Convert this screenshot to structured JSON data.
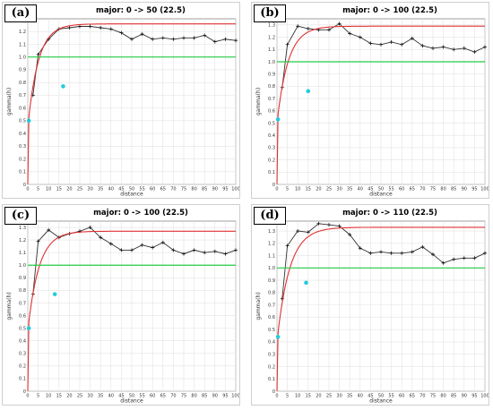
{
  "chart_data": [
    {
      "type": "line",
      "panel_label": "(a)",
      "title": "major: 0 -> 50 (22.5)",
      "xlabel": "distance",
      "ylabel": "gamma(h)",
      "xlim": [
        0,
        100
      ],
      "ylim": [
        0,
        1.3
      ],
      "xticks": [
        0,
        5,
        10,
        15,
        20,
        25,
        30,
        35,
        40,
        45,
        50,
        55,
        60,
        65,
        70,
        75,
        80,
        85,
        90,
        95,
        100
      ],
      "yticks": [
        0,
        0.1,
        0.2,
        0.3,
        0.4,
        0.5,
        0.6,
        0.7,
        0.8,
        0.9,
        1.0,
        1.1,
        1.2
      ],
      "ytick_labels": [
        "0",
        "0.1",
        "0.2",
        "0.3",
        "0.4",
        "0.5",
        "0.6",
        "0.7",
        "0.8",
        "0.9",
        "1.0",
        "1.1",
        "1.2"
      ],
      "grid": true,
      "colors": {
        "experimental": "#333333",
        "model": "#e03030",
        "sill": "#22cc44",
        "pairs": "#22ccdd"
      },
      "series": [
        {
          "kind": "experimental",
          "x": [
            2.5,
            5,
            10,
            15,
            20,
            25,
            30,
            35,
            40,
            45,
            50,
            55,
            60,
            65,
            70,
            75,
            80,
            85,
            90,
            95,
            100
          ],
          "y": [
            0.7,
            1.02,
            1.14,
            1.22,
            1.23,
            1.24,
            1.24,
            1.23,
            1.22,
            1.19,
            1.14,
            1.18,
            1.14,
            1.15,
            1.14,
            1.15,
            1.15,
            1.17,
            1.12,
            1.14,
            1.13
          ]
        },
        {
          "kind": "model",
          "model_range": 15,
          "model_sill": 1.26,
          "model_nugget": 0.45
        },
        {
          "kind": "sill",
          "y": 1.0
        },
        {
          "kind": "pairs",
          "x": [
            0.5,
            17
          ],
          "y": [
            0.5,
            0.77
          ]
        }
      ]
    },
    {
      "type": "line",
      "panel_label": "(b)",
      "title": "major: 0 -> 100 (22.5)",
      "xlabel": "distance",
      "ylabel": "gamma(h)",
      "xlim": [
        0,
        100
      ],
      "ylim": [
        0,
        1.35
      ],
      "xticks": [
        0,
        5,
        10,
        15,
        20,
        25,
        30,
        35,
        40,
        45,
        50,
        55,
        60,
        65,
        70,
        75,
        80,
        85,
        90,
        95,
        100
      ],
      "yticks": [
        0,
        0.1,
        0.2,
        0.3,
        0.4,
        0.5,
        0.6,
        0.7,
        0.8,
        0.9,
        1.0,
        1.1,
        1.2,
        1.3
      ],
      "ytick_labels": [
        "0",
        "0.1",
        "0.2",
        "0.3",
        "0.4",
        "0.5",
        "0.6",
        "0.7",
        "0.8",
        "0.9",
        "1.0",
        "1.1",
        "1.2",
        "1.3"
      ],
      "grid": true,
      "colors": {
        "experimental": "#333333",
        "model": "#e03030",
        "sill": "#22cc44",
        "pairs": "#22ccdd"
      },
      "series": [
        {
          "kind": "experimental",
          "x": [
            2.5,
            5,
            10,
            15,
            20,
            25,
            30,
            35,
            40,
            45,
            50,
            55,
            60,
            65,
            70,
            75,
            80,
            85,
            90,
            95,
            100
          ],
          "y": [
            0.79,
            1.14,
            1.29,
            1.27,
            1.26,
            1.26,
            1.31,
            1.23,
            1.2,
            1.15,
            1.14,
            1.16,
            1.14,
            1.19,
            1.13,
            1.11,
            1.12,
            1.1,
            1.11,
            1.08,
            1.12
          ]
        },
        {
          "kind": "model",
          "model_range": 16,
          "model_sill": 1.29,
          "model_nugget": 0.5
        },
        {
          "kind": "sill",
          "y": 1.0
        },
        {
          "kind": "pairs",
          "x": [
            0.5,
            15
          ],
          "y": [
            0.53,
            0.76
          ]
        }
      ]
    },
    {
      "type": "line",
      "panel_label": "(c)",
      "title": "major: 0 -> 100 (22.5)",
      "xlabel": "distance",
      "ylabel": "gamma(h)",
      "xlim": [
        0,
        100
      ],
      "ylim": [
        0,
        1.35
      ],
      "xticks": [
        0,
        5,
        10,
        15,
        20,
        25,
        30,
        35,
        40,
        45,
        50,
        55,
        60,
        65,
        70,
        75,
        80,
        85,
        90,
        95,
        100
      ],
      "yticks": [
        0,
        0.1,
        0.2,
        0.3,
        0.4,
        0.5,
        0.6,
        0.7,
        0.8,
        0.9,
        1.0,
        1.1,
        1.2,
        1.3
      ],
      "ytick_labels": [
        "0",
        "0.1",
        "0.2",
        "0.3",
        "0.4",
        "0.5",
        "0.6",
        "0.7",
        "0.8",
        "0.9",
        "1.0",
        "1.1",
        "1.2",
        "1.3"
      ],
      "grid": true,
      "colors": {
        "experimental": "#333333",
        "model": "#e03030",
        "sill": "#22cc44",
        "pairs": "#22ccdd"
      },
      "series": [
        {
          "kind": "experimental",
          "x": [
            2.5,
            5,
            10,
            15,
            20,
            25,
            30,
            35,
            40,
            45,
            50,
            55,
            60,
            65,
            70,
            75,
            80,
            85,
            90,
            95,
            100
          ],
          "y": [
            0.77,
            1.19,
            1.28,
            1.22,
            1.25,
            1.27,
            1.3,
            1.22,
            1.17,
            1.12,
            1.12,
            1.16,
            1.14,
            1.18,
            1.12,
            1.09,
            1.12,
            1.1,
            1.11,
            1.09,
            1.12
          ]
        },
        {
          "kind": "model",
          "model_range": 16,
          "model_sill": 1.27,
          "model_nugget": 0.48
        },
        {
          "kind": "sill",
          "y": 1.0
        },
        {
          "kind": "pairs",
          "x": [
            0.5,
            13
          ],
          "y": [
            0.5,
            0.77
          ]
        }
      ]
    },
    {
      "type": "line",
      "panel_label": "(d)",
      "title": "major: 0 -> 110 (22.5)",
      "xlabel": "distance",
      "ylabel": "gamma(h)",
      "xlim": [
        0,
        100
      ],
      "ylim": [
        0,
        1.38
      ],
      "xticks": [
        0,
        5,
        10,
        15,
        20,
        25,
        30,
        35,
        40,
        45,
        50,
        55,
        60,
        65,
        70,
        75,
        80,
        85,
        90,
        95,
        100
      ],
      "yticks": [
        0,
        0.1,
        0.2,
        0.3,
        0.4,
        0.5,
        0.6,
        0.7,
        0.8,
        0.9,
        1.0,
        1.1,
        1.2,
        1.3
      ],
      "ytick_labels": [
        "0",
        "0.1",
        "0.2",
        "0.3",
        "0.4",
        "0.5",
        "0.6",
        "0.7",
        "0.8",
        "0.9",
        "1.0",
        "1.1",
        "1.2",
        "1.3"
      ],
      "grid": true,
      "colors": {
        "experimental": "#333333",
        "model": "#e03030",
        "sill": "#22cc44",
        "pairs": "#22ccdd"
      },
      "series": [
        {
          "kind": "experimental",
          "x": [
            2.5,
            5,
            10,
            15,
            20,
            25,
            30,
            35,
            40,
            45,
            50,
            55,
            60,
            65,
            70,
            75,
            80,
            85,
            90,
            95,
            100
          ],
          "y": [
            0.75,
            1.18,
            1.3,
            1.29,
            1.36,
            1.35,
            1.34,
            1.27,
            1.16,
            1.12,
            1.13,
            1.12,
            1.12,
            1.13,
            1.17,
            1.11,
            1.04,
            1.07,
            1.08,
            1.08,
            1.12
          ]
        },
        {
          "kind": "model",
          "model_range": 18,
          "model_sill": 1.33,
          "model_nugget": 0.4
        },
        {
          "kind": "sill",
          "y": 1.0
        },
        {
          "kind": "pairs",
          "x": [
            0.5,
            14
          ],
          "y": [
            0.44,
            0.88
          ]
        }
      ]
    }
  ]
}
